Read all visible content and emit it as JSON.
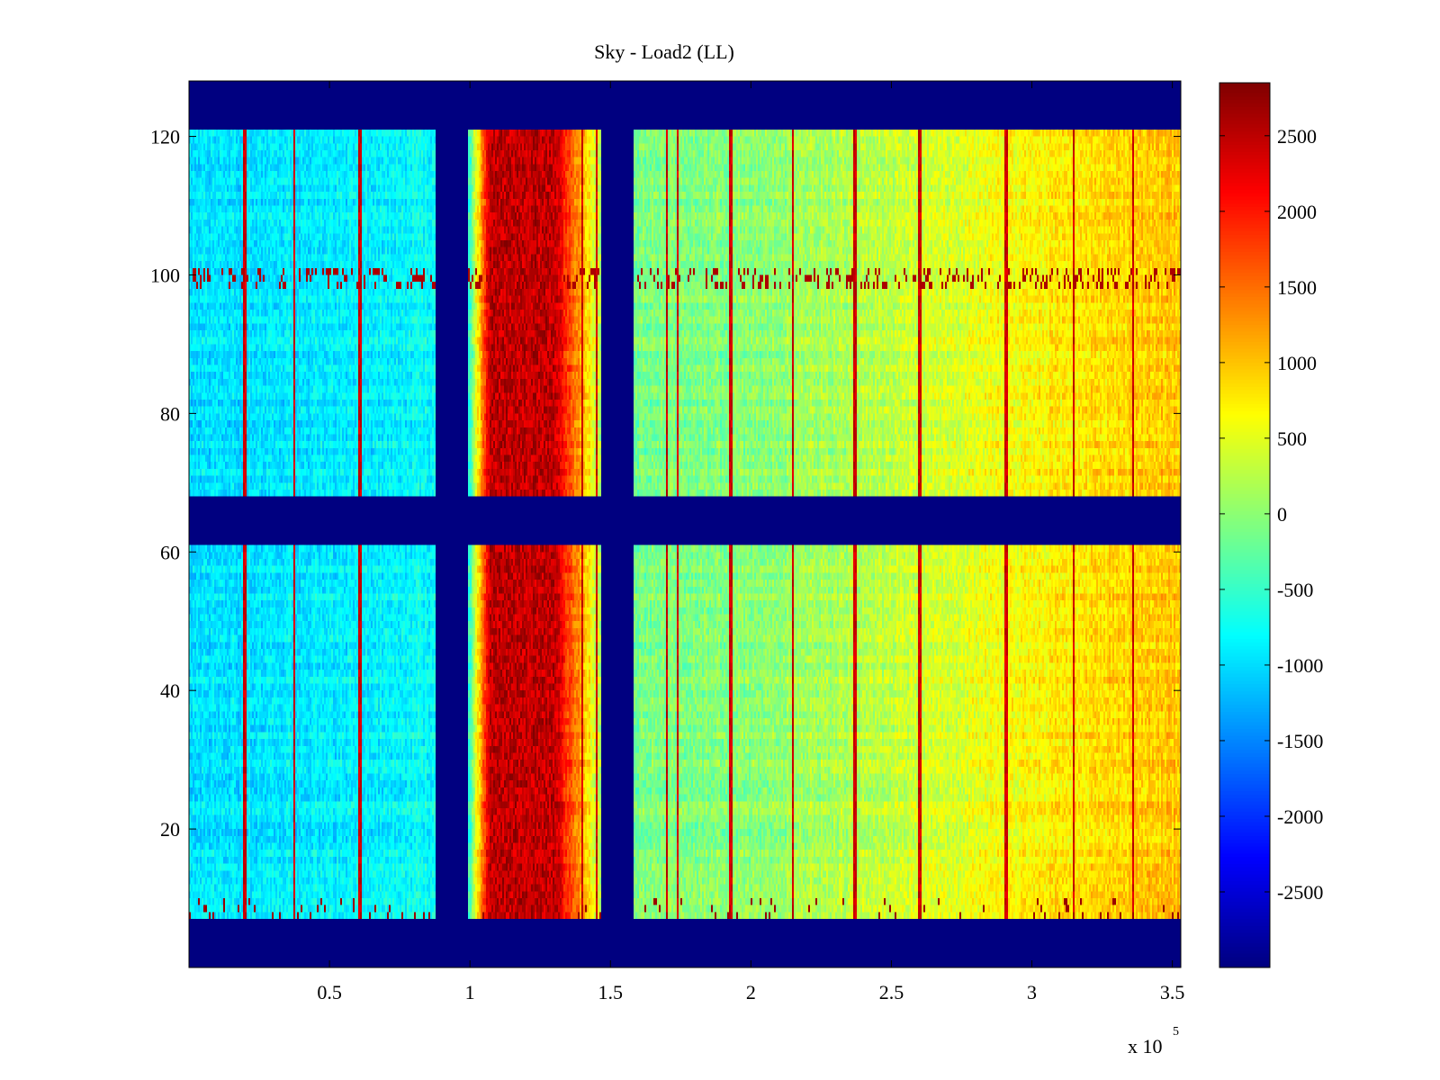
{
  "chart_data": {
    "type": "heatmap",
    "title": "Sky - Load2 (LL)",
    "xlabel": "",
    "ylabel": "",
    "x_multiplier_label": "x 10",
    "x_multiplier_exponent": "5",
    "xlim": [
      0,
      353000
    ],
    "ylim": [
      0,
      128
    ],
    "x_ticks": [
      {
        "value": 50000,
        "label": "0.5"
      },
      {
        "value": 100000,
        "label": "1"
      },
      {
        "value": 150000,
        "label": "1.5"
      },
      {
        "value": 200000,
        "label": "2"
      },
      {
        "value": 250000,
        "label": "2.5"
      },
      {
        "value": 300000,
        "label": "3"
      },
      {
        "value": 350000,
        "label": "3.5"
      }
    ],
    "y_ticks": [
      {
        "value": 20,
        "label": "20"
      },
      {
        "value": 40,
        "label": "40"
      },
      {
        "value": 60,
        "label": "60"
      },
      {
        "value": 80,
        "label": "80"
      },
      {
        "value": 100,
        "label": "100"
      },
      {
        "value": 120,
        "label": "120"
      }
    ],
    "colorbar": {
      "colormap": "jet",
      "clim": [
        -3000,
        2850
      ],
      "ticks": [
        {
          "value": 2500,
          "label": "2500"
        },
        {
          "value": 2000,
          "label": "2000"
        },
        {
          "value": 1500,
          "label": "1500"
        },
        {
          "value": 1000,
          "label": "1000"
        },
        {
          "value": 500,
          "label": "500"
        },
        {
          "value": 0,
          "label": "0"
        },
        {
          "value": -500,
          "label": "-500"
        },
        {
          "value": -1000,
          "label": "-1000"
        },
        {
          "value": -1500,
          "label": "-1500"
        },
        {
          "value": -2000,
          "label": "-2000"
        },
        {
          "value": -2500,
          "label": "-2500"
        }
      ]
    },
    "masked_value": -3000,
    "masked_channel_ranges": [
      [
        0,
        7
      ],
      [
        61,
        68
      ],
      [
        121,
        128
      ]
    ],
    "masked_time_ranges": [
      [
        88000,
        99000
      ],
      [
        147000,
        158000
      ]
    ],
    "bright_band": {
      "x_range": [
        107000,
        130000
      ],
      "value": 2500
    },
    "rfi_channel_row": {
      "y_range": [
        98,
        101
      ]
    },
    "value_profile": {
      "x": [
        0,
        50000,
        87000,
        100000,
        107000,
        130000,
        150000,
        160000,
        200000,
        250000,
        300000,
        353000
      ],
      "value": [
        -1000,
        -900,
        -800,
        -500,
        2500,
        2500,
        -300,
        -100,
        0,
        300,
        700,
        1000
      ]
    },
    "vertical_spikes_x": [
      20000,
      37500,
      61000,
      121000,
      140000,
      145000,
      170000,
      174000,
      193000,
      215000,
      237000,
      260000,
      291000,
      315000,
      336000
    ],
    "grid": false,
    "legend": "none"
  }
}
